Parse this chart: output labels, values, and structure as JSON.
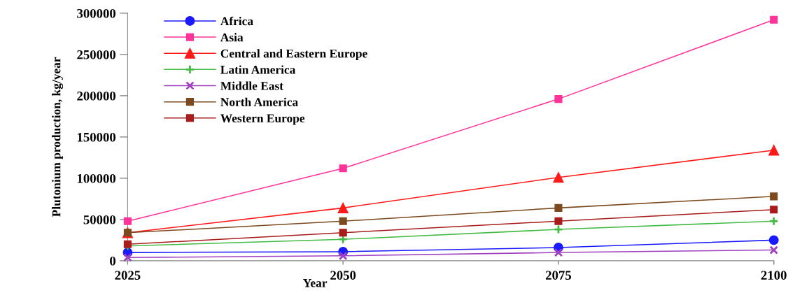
{
  "chart_data": {
    "type": "line",
    "xlabel": "Year",
    "ylabel": "Plutonium production, kg/year",
    "x": [
      2025,
      2050,
      2075,
      2100
    ],
    "xlim": [
      2025,
      2100
    ],
    "xticks": [
      2025,
      2050,
      2075,
      2100
    ],
    "ylim": [
      0,
      300000
    ],
    "yticks": [
      0,
      50000,
      100000,
      150000,
      200000,
      250000,
      300000
    ],
    "grid": false,
    "legend": "top left",
    "line_style": "solid",
    "series": [
      {
        "name": "Africa",
        "color": "#1a1aff",
        "marker": "circle",
        "values": [
          10000,
          11000,
          16000,
          25000
        ]
      },
      {
        "name": "Asia",
        "color": "#ff3399",
        "marker": "square",
        "values": [
          48000,
          112000,
          196000,
          292000
        ]
      },
      {
        "name": "Central and Eastern Europe",
        "color": "#ff1a1a",
        "marker": "triangle",
        "values": [
          34000,
          64000,
          101000,
          134000
        ]
      },
      {
        "name": "Latin America",
        "color": "#44bb44",
        "marker": "plus",
        "values": [
          18000,
          26000,
          38000,
          48000
        ]
      },
      {
        "name": "Middle East",
        "color": "#a040c0",
        "marker": "cross",
        "values": [
          4000,
          6000,
          10000,
          13000
        ]
      },
      {
        "name": "North America",
        "color": "#7b4a1e",
        "marker": "square",
        "values": [
          34000,
          48000,
          64000,
          78000
        ]
      },
      {
        "name": "Western Europe",
        "color": "#a81c1c",
        "marker": "square",
        "values": [
          20000,
          34000,
          48000,
          62000
        ]
      }
    ]
  }
}
